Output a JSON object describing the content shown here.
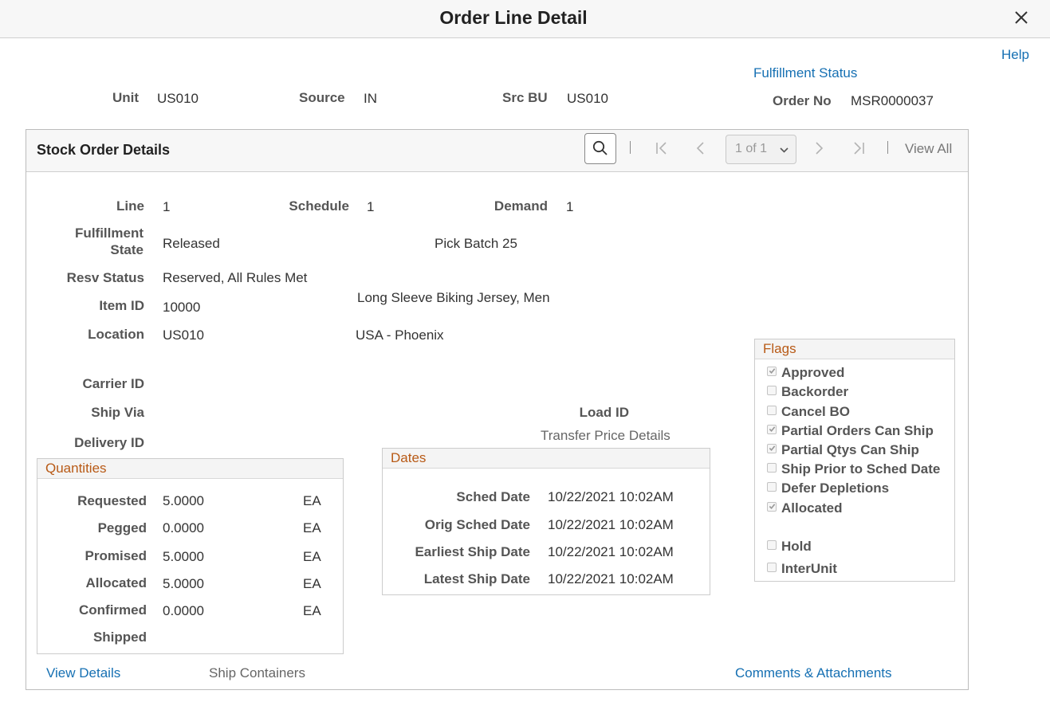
{
  "header": {
    "title": "Order Line Detail"
  },
  "help_link": "Help",
  "fulfillment_status_link": "Fulfillment Status",
  "order_summary": {
    "unit_label": "Unit",
    "unit_value": "US010",
    "source_label": "Source",
    "source_value": "IN",
    "src_bu_label": "Src BU",
    "src_bu_value": "US010",
    "order_no_label": "Order No",
    "order_no_value": "MSR0000037"
  },
  "stock_order": {
    "title": "Stock Order Details",
    "pager": {
      "page_value": "1 of 1",
      "view_all": "View All"
    },
    "line_label": "Line",
    "line_value": "1",
    "schedule_label": "Schedule",
    "schedule_value": "1",
    "demand_label": "Demand",
    "demand_value": "1",
    "fulfillment_state_label_1": "Fulfillment",
    "fulfillment_state_label_2": "State",
    "fulfillment_state_value": "Released",
    "pick_batch": "Pick Batch 25",
    "resv_status_label": "Resv Status",
    "resv_status_value": "Reserved, All Rules Met",
    "item_id_label": "Item ID",
    "item_id_value": "10000",
    "item_desc": "Long Sleeve Biking Jersey, Men",
    "location_label": "Location",
    "location_value": "US010",
    "location_desc": "USA - Phoenix",
    "carrier_id_label": "Carrier ID",
    "ship_via_label": "Ship Via",
    "delivery_id_label": "Delivery ID",
    "load_id_label": "Load ID",
    "transfer_price_details": "Transfer Price Details"
  },
  "quantities": {
    "title": "Quantities",
    "rows": [
      {
        "label": "Requested",
        "value": "5.0000",
        "uom": "EA"
      },
      {
        "label": "Pegged",
        "value": "0.0000",
        "uom": "EA"
      },
      {
        "label": "Promised",
        "value": "5.0000",
        "uom": "EA"
      },
      {
        "label": "Allocated",
        "value": "5.0000",
        "uom": "EA"
      },
      {
        "label": "Confirmed",
        "value": "0.0000",
        "uom": "EA"
      },
      {
        "label": "Shipped",
        "value": "",
        "uom": ""
      }
    ]
  },
  "dates": {
    "title": "Dates",
    "rows": [
      {
        "label": "Sched Date",
        "value": "10/22/2021 10:02AM"
      },
      {
        "label": "Orig Sched Date",
        "value": "10/22/2021 10:02AM"
      },
      {
        "label": "Earliest Ship Date",
        "value": "10/22/2021 10:02AM"
      },
      {
        "label": "Latest Ship Date",
        "value": "10/22/2021 10:02AM"
      }
    ]
  },
  "flags": {
    "title": "Flags",
    "items": [
      {
        "label": "Approved",
        "checked": true
      },
      {
        "label": "Backorder",
        "checked": false
      },
      {
        "label": "Cancel BO",
        "checked": false
      },
      {
        "label": "Partial Orders Can Ship",
        "checked": true
      },
      {
        "label": "Partial Qtys Can Ship",
        "checked": true
      },
      {
        "label": "Ship Prior to Sched Date",
        "checked": false
      },
      {
        "label": "Defer Depletions",
        "checked": false
      },
      {
        "label": "Allocated",
        "checked": true
      },
      {
        "label": "Hold",
        "checked": false
      },
      {
        "label": "InterUnit",
        "checked": false
      }
    ]
  },
  "footer": {
    "view_details": "View Details",
    "ship_containers": "Ship Containers",
    "comments_attachments": "Comments & Attachments"
  },
  "colors": {
    "link": "#1670b3",
    "group_title": "#b85a16",
    "label": "#555555"
  }
}
